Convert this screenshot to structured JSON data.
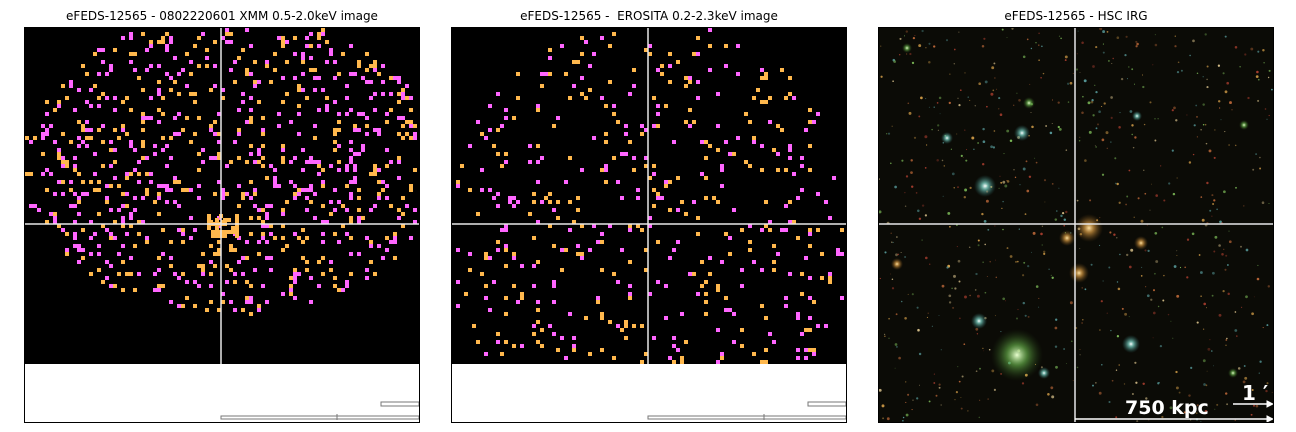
{
  "panels": [
    {
      "id": "xmm",
      "title": "eFEDS-12565 - 0802220601 XMM 0.5-2.0keV image",
      "image_type": "xray",
      "icon": "xray-counts-image-icon",
      "colors": {
        "background": "#000000",
        "low": "#ff66ff",
        "high": "#ffb84d",
        "crosshair": "#e8e8e8"
      }
    },
    {
      "id": "erosita",
      "title": "eFEDS-12565 -  EROSITA 0.2-2.3keV image",
      "image_type": "xray",
      "icon": "xray-counts-image-icon",
      "colors": {
        "background": "#000000",
        "low": "#ff66ff",
        "high": "#ffb84d",
        "crosshair": "#e8e8e8"
      }
    },
    {
      "id": "hsc",
      "title": "eFEDS-12565 - HSC IRG",
      "image_type": "optical",
      "icon": "optical-color-image-icon",
      "scale_angular": "1 ′",
      "scale_physical": "750 kpc",
      "colors": {
        "background": "#0b0b06",
        "crosshair": "#e8e8e8"
      }
    }
  ]
}
